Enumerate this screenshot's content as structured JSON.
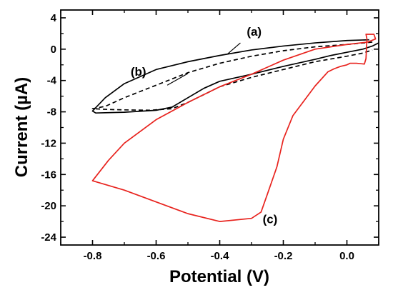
{
  "chart_data": {
    "type": "line",
    "title": "",
    "xlabel": "Potential (V)",
    "ylabel": "Current (µA)",
    "xlim": [
      -0.9,
      0.1
    ],
    "ylim": [
      -25,
      5
    ],
    "x_ticks": [
      -0.8,
      -0.6,
      -0.4,
      -0.2,
      0.0
    ],
    "x_tick_labels": [
      "-0.8",
      "-0.6",
      "-0.4",
      "-0.2",
      "0.0"
    ],
    "y_ticks": [
      4,
      0,
      -4,
      -8,
      -12,
      -16,
      -20,
      -24
    ],
    "y_tick_labels": [
      "4",
      "0",
      "-4",
      "-8",
      "-12",
      "-16",
      "-20",
      "-24"
    ],
    "grid": false,
    "series": [
      {
        "key": "a",
        "color": "#000000",
        "style": "solid",
        "points": [
          [
            0.07,
            1.2
          ],
          [
            0.0,
            1.1
          ],
          [
            -0.1,
            0.8
          ],
          [
            -0.2,
            0.4
          ],
          [
            -0.3,
            -0.1
          ],
          [
            -0.4,
            -0.8
          ],
          [
            -0.5,
            -1.6
          ],
          [
            -0.6,
            -2.6
          ],
          [
            -0.7,
            -4.4
          ],
          [
            -0.76,
            -6.2
          ],
          [
            -0.8,
            -7.9
          ],
          [
            -0.79,
            -8.15
          ],
          [
            -0.7,
            -8.05
          ],
          [
            -0.6,
            -7.8
          ],
          [
            -0.55,
            -7.4
          ],
          [
            -0.5,
            -6.2
          ],
          [
            -0.45,
            -5.0
          ],
          [
            -0.4,
            -4.1
          ],
          [
            -0.3,
            -3.2
          ],
          [
            -0.2,
            -2.2
          ],
          [
            -0.1,
            -1.3
          ],
          [
            -0.05,
            -0.8
          ],
          [
            0.0,
            -0.4
          ],
          [
            0.05,
            0.0
          ],
          [
            0.08,
            0.4
          ],
          [
            0.1,
            0.8
          ]
        ]
      },
      {
        "key": "b",
        "color": "#000000",
        "style": "dashed",
        "points": [
          [
            0.08,
            0.9
          ],
          [
            0.0,
            0.6
          ],
          [
            -0.1,
            0.3
          ],
          [
            -0.2,
            -0.2
          ],
          [
            -0.3,
            -0.9
          ],
          [
            -0.4,
            -1.8
          ],
          [
            -0.5,
            -3.0
          ],
          [
            -0.6,
            -4.6
          ],
          [
            -0.7,
            -6.2
          ],
          [
            -0.76,
            -7.3
          ],
          [
            -0.8,
            -7.6
          ],
          [
            -0.75,
            -7.7
          ],
          [
            -0.7,
            -7.75
          ],
          [
            -0.62,
            -7.8
          ],
          [
            -0.55,
            -7.6
          ],
          [
            -0.5,
            -6.8
          ],
          [
            -0.45,
            -5.8
          ],
          [
            -0.4,
            -4.8
          ],
          [
            -0.3,
            -3.6
          ],
          [
            -0.2,
            -2.6
          ],
          [
            -0.1,
            -1.6
          ],
          [
            0.0,
            -0.9
          ],
          [
            0.05,
            -0.5
          ],
          [
            0.08,
            -0.1
          ]
        ]
      },
      {
        "key": "c",
        "color": "#e8231e",
        "style": "solid",
        "points": [
          [
            0.063,
            1.3
          ],
          [
            0.06,
            1.9
          ],
          [
            0.085,
            1.9
          ],
          [
            0.09,
            1.3
          ],
          [
            0.065,
            0.9
          ],
          [
            0.0,
            0.6
          ],
          [
            -0.1,
            0.0
          ],
          [
            -0.2,
            -1.4
          ],
          [
            -0.3,
            -3.2
          ],
          [
            -0.4,
            -4.8
          ],
          [
            -0.5,
            -6.8
          ],
          [
            -0.6,
            -9.0
          ],
          [
            -0.7,
            -12.0
          ],
          [
            -0.75,
            -14.2
          ],
          [
            -0.8,
            -16.8
          ],
          [
            -0.7,
            -18.0
          ],
          [
            -0.6,
            -19.5
          ],
          [
            -0.5,
            -21.0
          ],
          [
            -0.4,
            -22.0
          ],
          [
            -0.3,
            -21.6
          ],
          [
            -0.27,
            -20.8
          ],
          [
            -0.25,
            -18.5
          ],
          [
            -0.22,
            -15.0
          ],
          [
            -0.2,
            -11.5
          ],
          [
            -0.17,
            -8.5
          ],
          [
            -0.1,
            -4.7
          ],
          [
            -0.06,
            -2.9
          ],
          [
            -0.04,
            -2.5
          ],
          [
            -0.02,
            -2.2
          ],
          [
            0.0,
            -2.0
          ],
          [
            0.01,
            -1.8
          ],
          [
            0.03,
            -1.8
          ],
          [
            0.055,
            -1.9
          ],
          [
            0.06,
            -1.2
          ],
          [
            0.063,
            1.3
          ]
        ]
      }
    ],
    "annotations": [
      {
        "text": "(a)",
        "series": "a",
        "label_at": [
          -0.315,
          1.7
        ],
        "pointer_from": [
          -0.335,
          0.8
        ],
        "pointer_to": [
          -0.375,
          -0.6
        ]
      },
      {
        "text": "(b)",
        "series": "b",
        "label_at": [
          -0.68,
          -3.4
        ],
        "pointer_from": [
          -0.565,
          -4.6
        ],
        "pointer_to": [
          -0.5,
          -3.1
        ]
      },
      {
        "text": "(c)",
        "series": "c",
        "label_at": [
          -0.265,
          -22.2
        ],
        "pointer_from": null,
        "pointer_to": null
      }
    ]
  }
}
